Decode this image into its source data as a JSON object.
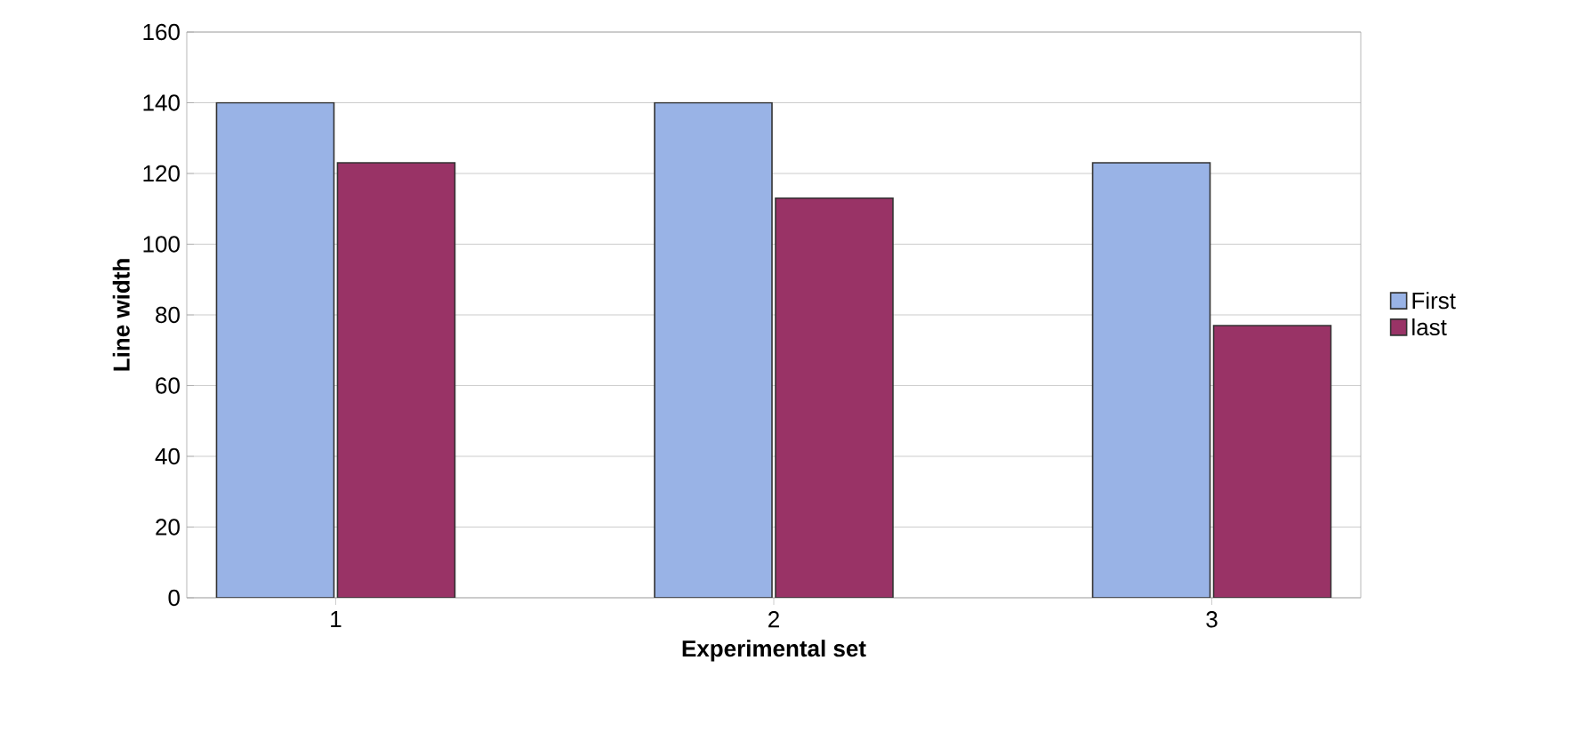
{
  "chart_data": {
    "type": "bar",
    "xlabel": "Experimental set",
    "ylabel": "Line width",
    "categories": [
      "1",
      "2",
      "3"
    ],
    "series": [
      {
        "name": "First",
        "color": "#99b3e6",
        "values": [
          140,
          140,
          123
        ]
      },
      {
        "name": "last",
        "color": "#993366",
        "values": [
          123,
          113,
          77
        ]
      }
    ],
    "ylim": [
      0,
      160
    ],
    "yticks": [
      0,
      20,
      40,
      60,
      80,
      100,
      120,
      140,
      160
    ],
    "grid": "y",
    "legend": "right"
  }
}
